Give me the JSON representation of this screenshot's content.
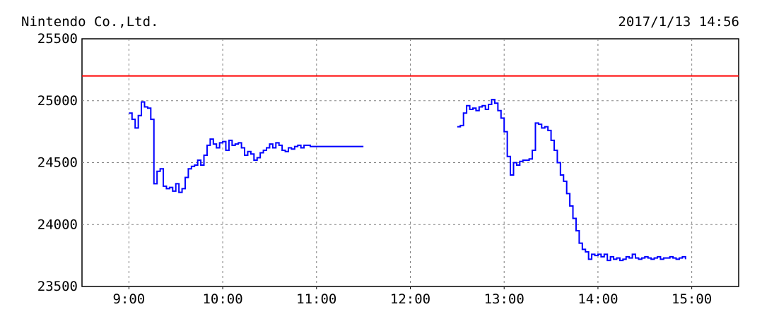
{
  "chart_data": {
    "type": "line",
    "title": "Nintendo Co.,Ltd.",
    "timestamp": "2017/1/13 14:56",
    "xlabel": "",
    "ylabel": "",
    "x_ticks": [
      "9:00",
      "10:00",
      "11:00",
      "12:00",
      "13:00",
      "14:00",
      "15:00"
    ],
    "y_ticks": [
      25500,
      25000,
      24500,
      24000,
      23500
    ],
    "xlim": [
      "8:30",
      "15:30"
    ],
    "ylim": [
      23500,
      25500
    ],
    "grid": true,
    "reference_line": {
      "value": 25200,
      "color": "#ff0000"
    },
    "series": [
      {
        "color": "#0000ff",
        "segments": [
          {
            "session": "morning",
            "x": [
              "9:00",
              "9:02",
              "9:04",
              "9:06",
              "9:08",
              "9:10",
              "9:12",
              "9:14",
              "9:16",
              "9:18",
              "9:20",
              "9:22",
              "9:24",
              "9:26",
              "9:28",
              "9:30",
              "9:32",
              "9:34",
              "9:36",
              "9:38",
              "9:40",
              "9:42",
              "9:44",
              "9:46",
              "9:48",
              "9:50",
              "9:52",
              "9:54",
              "9:56",
              "9:58",
              "10:00",
              "10:02",
              "10:04",
              "10:06",
              "10:08",
              "10:10",
              "10:12",
              "10:14",
              "10:16",
              "10:18",
              "10:20",
              "10:22",
              "10:24",
              "10:26",
              "10:28",
              "10:30",
              "10:32",
              "10:34",
              "10:36",
              "10:38",
              "10:40",
              "10:42",
              "10:44",
              "10:46",
              "10:48",
              "10:50",
              "10:52",
              "10:54",
              "10:56",
              "10:58",
              "11:00",
              "11:02",
              "11:04",
              "11:06",
              "11:08",
              "11:10",
              "11:12",
              "11:14",
              "11:16",
              "11:18",
              "11:20",
              "11:22",
              "11:24",
              "11:26",
              "11:28",
              "11:30"
            ],
            "y": [
              24900,
              24850,
              24780,
              24880,
              24990,
              24950,
              24940,
              24850,
              24330,
              24430,
              24450,
              24310,
              24290,
              24300,
              24270,
              24330,
              24260,
              24290,
              24380,
              24450,
              24470,
              24480,
              24520,
              24480,
              24560,
              24640,
              24690,
              24650,
              24620,
              24660,
              24670,
              24600,
              24680,
              24640,
              24650,
              24660,
              24620,
              24560,
              24590,
              24570,
              24520,
              24540,
              24580,
              24600,
              24620,
              24650,
              24620,
              24660,
              24640,
              24600,
              24590,
              24620,
              24610,
              24630,
              24640,
              24620,
              24640,
              24640,
              24630,
              24630,
              24630,
              24630,
              24630,
              24630,
              24630,
              24630,
              24630,
              24630,
              24630,
              24630,
              24630,
              24630,
              24630,
              24630,
              24630,
              24630
            ]
          },
          {
            "session": "afternoon",
            "x": [
              "12:30",
              "12:32",
              "12:34",
              "12:36",
              "12:38",
              "12:40",
              "12:42",
              "12:44",
              "12:46",
              "12:48",
              "12:50",
              "12:52",
              "12:54",
              "12:56",
              "12:58",
              "13:00",
              "13:02",
              "13:04",
              "13:06",
              "13:08",
              "13:10",
              "13:12",
              "13:14",
              "13:16",
              "13:18",
              "13:20",
              "13:22",
              "13:24",
              "13:26",
              "13:28",
              "13:30",
              "13:32",
              "13:34",
              "13:36",
              "13:38",
              "13:40",
              "13:42",
              "13:44",
              "13:46",
              "13:48",
              "13:50",
              "13:52",
              "13:54",
              "13:56",
              "13:58",
              "14:00",
              "14:02",
              "14:04",
              "14:06",
              "14:08",
              "14:10",
              "14:12",
              "14:14",
              "14:16",
              "14:18",
              "14:20",
              "14:22",
              "14:24",
              "14:26",
              "14:28",
              "14:30",
              "14:32",
              "14:34",
              "14:36",
              "14:38",
              "14:40",
              "14:42",
              "14:44",
              "14:46",
              "14:48",
              "14:50",
              "14:52",
              "14:54",
              "14:56"
            ],
            "y": [
              24790,
              24800,
              24900,
              24960,
              24930,
              24940,
              24920,
              24950,
              24960,
              24930,
              24970,
              25010,
              24980,
              24920,
              24860,
              24750,
              24550,
              24400,
              24500,
              24480,
              24510,
              24520,
              24520,
              24530,
              24600,
              24820,
              24810,
              24780,
              24790,
              24760,
              24680,
              24600,
              24500,
              24400,
              24350,
              24250,
              24150,
              24050,
              23950,
              23850,
              23800,
              23780,
              23720,
              23760,
              23750,
              23760,
              23740,
              23760,
              23710,
              23740,
              23720,
              23730,
              23710,
              23720,
              23740,
              23730,
              23760,
              23730,
              23720,
              23730,
              23740,
              23730,
              23720,
              23730,
              23740,
              23720,
              23730,
              23730,
              23740,
              23730,
              23720,
              23730,
              23740,
              23720
            ]
          }
        ]
      }
    ]
  }
}
